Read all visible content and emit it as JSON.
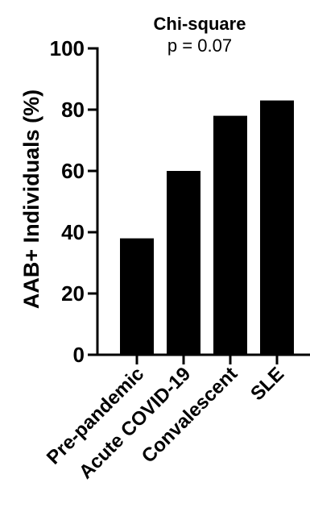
{
  "chart_data": {
    "type": "bar",
    "annotation": {
      "heading": "Chi-square",
      "pvalue": "p = 0.07"
    },
    "xlabel": "",
    "ylabel": "AAB+ Individuals (%)",
    "categories": [
      "Pre-pandemic",
      "Acute COVID-19",
      "Convalescent",
      "SLE"
    ],
    "values": [
      38,
      60,
      78,
      83
    ],
    "ylim": [
      0,
      100
    ],
    "yticks": [
      "0",
      "20",
      "40",
      "60",
      "80",
      "100"
    ],
    "bar_color": "#000000",
    "axis_color": "#000000",
    "grid": false
  }
}
